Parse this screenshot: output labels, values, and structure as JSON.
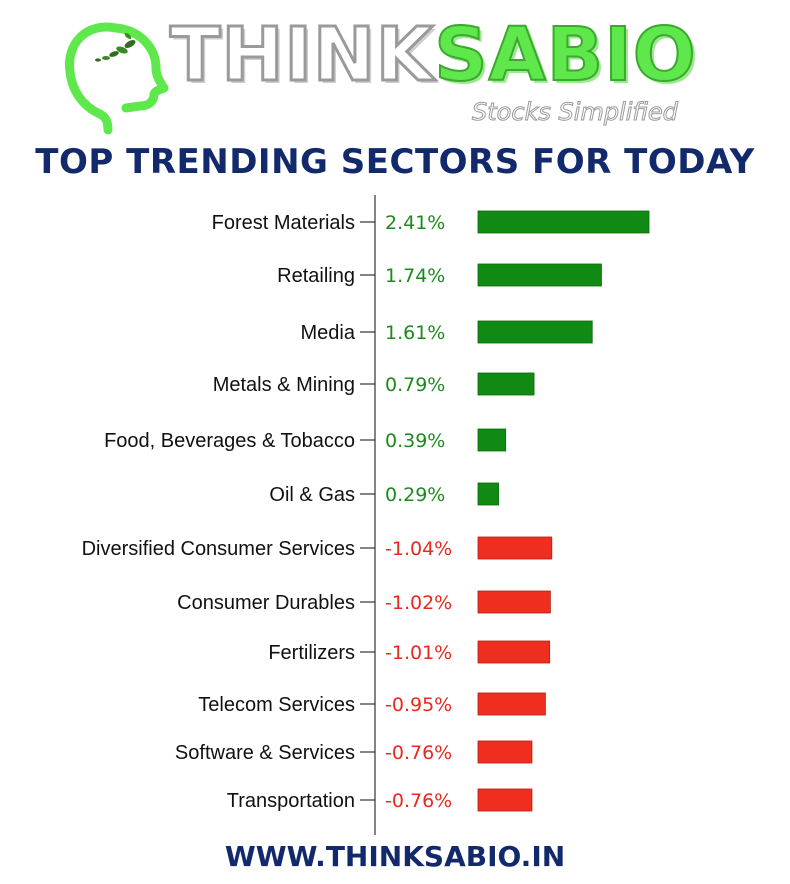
{
  "brand": {
    "part1": "THINK",
    "part2": "SABIO",
    "tagline": "Stocks Simplified"
  },
  "title": "TOP TRENDING SECTORS FOR TODAY",
  "footer": "WWW.THINKSABIO.IN",
  "colors": {
    "positive": "#118a13",
    "negative": "#f02e1f",
    "positive_text": "#1d8a1d",
    "negative_text": "#e8291b",
    "title": "#12296b"
  },
  "chart_data": {
    "type": "bar",
    "orientation": "horizontal",
    "title": "TOP TRENDING SECTORS FOR TODAY",
    "categories": [
      "Forest Materials",
      "Retailing",
      "Media",
      "Metals & Mining",
      "Food, Beverages & Tobacco",
      "Oil & Gas",
      "Diversified Consumer Services",
      "Consumer Durables",
      "Fertilizers",
      "Telecom Services",
      "Software & Services",
      "Transportation"
    ],
    "values": [
      2.41,
      1.74,
      1.61,
      0.79,
      0.39,
      0.29,
      -1.04,
      -1.02,
      -1.01,
      -0.95,
      -0.76,
      -0.76
    ],
    "value_labels": [
      "2.41%",
      "1.74%",
      "1.61%",
      "0.79%",
      "0.39%",
      "0.29%",
      "-1.04%",
      "-1.02%",
      "-1.01%",
      "-0.95%",
      "-0.76%",
      "-0.76%"
    ],
    "bar_lengths": "absolute value",
    "xlabel": "",
    "ylabel": "",
    "grid": false,
    "legend": "none"
  }
}
